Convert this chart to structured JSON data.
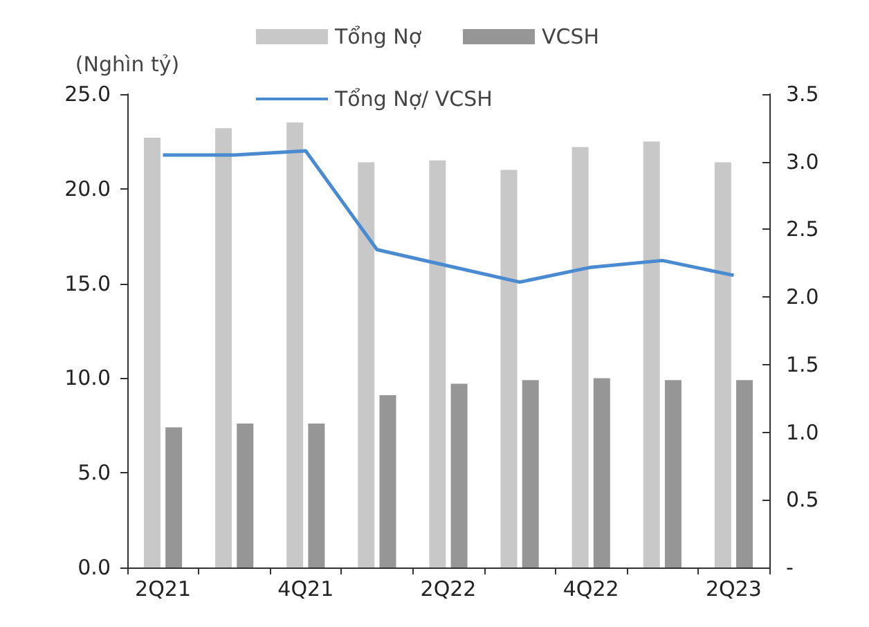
{
  "chart_data": {
    "type": "bar",
    "ylabel": "(Nghìn tỷ)",
    "categories": [
      "2Q21",
      null,
      "4Q21",
      null,
      "2Q22",
      null,
      "4Q22",
      null,
      "2Q23"
    ],
    "series": [
      {
        "name": "Tổng Nợ",
        "color": "#c8c8c8",
        "values": [
          22.7,
          23.2,
          23.5,
          21.4,
          21.5,
          21.0,
          22.2,
          22.5,
          21.4
        ]
      },
      {
        "name": "VCSH",
        "color": "#969696",
        "values": [
          7.4,
          7.6,
          7.6,
          9.1,
          9.7,
          9.9,
          10.0,
          9.9,
          9.9
        ]
      },
      {
        "name": "Tổng Nợ/ VCSH",
        "type": "line",
        "axis": "y2",
        "color": "#4a8ad0",
        "values": [
          3.05,
          3.05,
          3.08,
          2.35,
          2.23,
          2.11,
          2.22,
          2.27,
          2.16
        ]
      }
    ],
    "ylim": [
      0,
      25
    ],
    "yticks": [
      {
        "value": 0,
        "label": "0.0"
      },
      {
        "value": 5,
        "label": "5.0"
      },
      {
        "value": 10,
        "label": "10.0"
      },
      {
        "value": 15,
        "label": "15.0"
      },
      {
        "value": 20,
        "label": "20.0"
      },
      {
        "value": 25,
        "label": "25.0"
      }
    ],
    "y2lim": [
      0,
      3.5
    ],
    "y2ticks": [
      {
        "value": 0,
        "label": "-"
      },
      {
        "value": 0.5,
        "label": "0.5"
      },
      {
        "value": 1,
        "label": "1.0"
      },
      {
        "value": 1.5,
        "label": "1.5"
      },
      {
        "value": 2,
        "label": "2.0"
      },
      {
        "value": 2.5,
        "label": "2.5"
      },
      {
        "value": 3,
        "label": "3.0"
      },
      {
        "value": 3.5,
        "label": "3.5"
      }
    ],
    "grid": false,
    "legend": "top",
    "marker": "none",
    "line_style": "solid"
  }
}
